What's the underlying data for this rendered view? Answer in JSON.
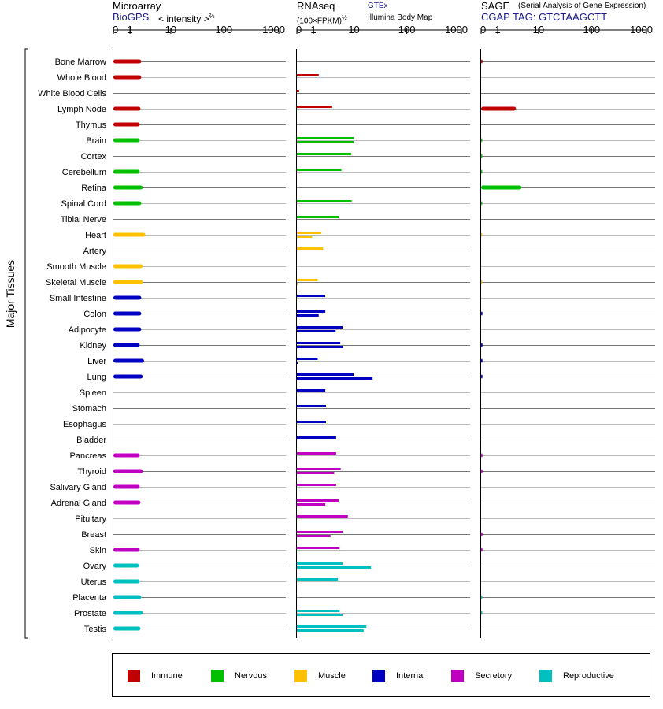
{
  "headers": {
    "microarray": {
      "title": "Microarray",
      "source": "BioGPS",
      "scale_label": "< intensity >",
      "scale_exp": "⅔"
    },
    "rnaseq": {
      "title": "RNAseq",
      "unit": "(100×FPKM)",
      "unit_exp": "½",
      "source1": "GTEx",
      "source2": "Illumina Body Map"
    },
    "sage": {
      "title": "SAGE",
      "subtitle": "(Serial Analysis of Gene Expression)",
      "tag": "CGAP TAG: GTCTAAGCTT"
    }
  },
  "ylabel": "Major Tissues",
  "legend": [
    {
      "label": "Immune",
      "color": "#c00000"
    },
    {
      "label": "Nervous",
      "color": "#00c000"
    },
    {
      "label": "Muscle",
      "color": "#ffc000"
    },
    {
      "label": "Internal",
      "color": "#0000c0"
    },
    {
      "label": "Secretory",
      "color": "#c000c0"
    },
    {
      "label": "Reproductive",
      "color": "#00c0c0"
    }
  ],
  "chart_data": {
    "type": "bar",
    "scale": "log",
    "x_ticks": [
      "0",
      "1",
      "10",
      "100",
      "1000"
    ],
    "tissues": [
      "Bone Marrow",
      "Whole Blood",
      "White Blood Cells",
      "Lymph Node",
      "Thymus",
      "Brain",
      "Cortex",
      "Cerebellum",
      "Retina",
      "Spinal Cord",
      "Tibial Nerve",
      "Heart",
      "Artery",
      "Smooth Muscle",
      "Skeletal Muscle",
      "Small Intestine",
      "Colon",
      "Adipocyte",
      "Kidney",
      "Liver",
      "Lung",
      "Spleen",
      "Stomach",
      "Esophagus",
      "Bladder",
      "Pancreas",
      "Thyroid",
      "Salivary Gland",
      "Adrenal Gland",
      "Pituitary",
      "Breast",
      "Skin",
      "Ovary",
      "Uterus",
      "Placenta",
      "Prostate",
      "Testis"
    ],
    "groups": [
      "Immune",
      "Immune",
      "Immune",
      "Immune",
      "Immune",
      "Nervous",
      "Nervous",
      "Nervous",
      "Nervous",
      "Nervous",
      "Nervous",
      "Muscle",
      "Muscle",
      "Muscle",
      "Muscle",
      "Internal",
      "Internal",
      "Internal",
      "Internal",
      "Internal",
      "Internal",
      "Internal",
      "Internal",
      "Internal",
      "Internal",
      "Secretory",
      "Secretory",
      "Secretory",
      "Secretory",
      "Secretory",
      "Secretory",
      "Secretory",
      "Reproductive",
      "Reproductive",
      "Reproductive",
      "Reproductive",
      "Reproductive"
    ],
    "microarray": [
      2.2,
      2.2,
      null,
      2.1,
      2.0,
      2.0,
      null,
      2.0,
      2.4,
      2.2,
      null,
      2.8,
      null,
      2.4,
      2.4,
      2.2,
      2.2,
      2.2,
      2.0,
      2.6,
      2.4,
      null,
      null,
      null,
      null,
      2.0,
      2.4,
      2.0,
      2.1,
      null,
      null,
      2.0,
      1.9,
      2.0,
      2.2,
      2.4,
      2.1
    ],
    "rnaseq_gtex": [
      null,
      1.9,
      null,
      null,
      null,
      null,
      null,
      null,
      null,
      null,
      null,
      2.0,
      null,
      null,
      null,
      null,
      2.3,
      null,
      null,
      1.8,
      null,
      null,
      null,
      null,
      null,
      null,
      null,
      null,
      null,
      null,
      null,
      null,
      null,
      null,
      null,
      null,
      null
    ],
    "rnaseq": [
      [
        null,
        null
      ],
      [
        1.5,
        null
      ],
      [
        0.1,
        null
      ],
      [
        3.4,
        null
      ],
      [
        null,
        null
      ],
      [
        9.8,
        9.8
      ],
      [
        8.8,
        null
      ],
      [
        5.5,
        null
      ],
      [
        null,
        null
      ],
      [
        9.0,
        null
      ],
      [
        4.8,
        null
      ],
      [
        1.8,
        0.9
      ],
      [
        2.0,
        null
      ],
      [
        null,
        null
      ],
      [
        1.4,
        0.02
      ],
      [
        2.3,
        null
      ],
      [
        2.3,
        1.5
      ],
      [
        5.8,
        4.1
      ],
      [
        5.2,
        6.0
      ],
      [
        1.4,
        0.02
      ],
      [
        9.8,
        23.0
      ],
      [
        2.3,
        null
      ],
      [
        2.4,
        null
      ],
      [
        2.4,
        null
      ],
      [
        4.2,
        null
      ],
      [
        4.2,
        null
      ],
      [
        5.3,
        3.8
      ],
      [
        4.2,
        null
      ],
      [
        4.8,
        2.3
      ],
      [
        7.5,
        null
      ],
      [
        5.8,
        3.1
      ],
      [
        5.0,
        null
      ],
      [
        5.8,
        21.5
      ],
      [
        4.6,
        null
      ],
      [
        null,
        null
      ],
      [
        5.0,
        5.8
      ],
      [
        17.5,
        15.5
      ]
    ],
    "sage": [
      0.06,
      null,
      null,
      3.3,
      null,
      0.05,
      0.05,
      0.05,
      4.4,
      0.05,
      null,
      0.03,
      null,
      null,
      0.03,
      null,
      0.06,
      null,
      0.06,
      0.06,
      0.06,
      null,
      null,
      null,
      null,
      0.06,
      0.06,
      null,
      null,
      null,
      0.06,
      0.06,
      null,
      null,
      0.05,
      0.05,
      null
    ]
  }
}
